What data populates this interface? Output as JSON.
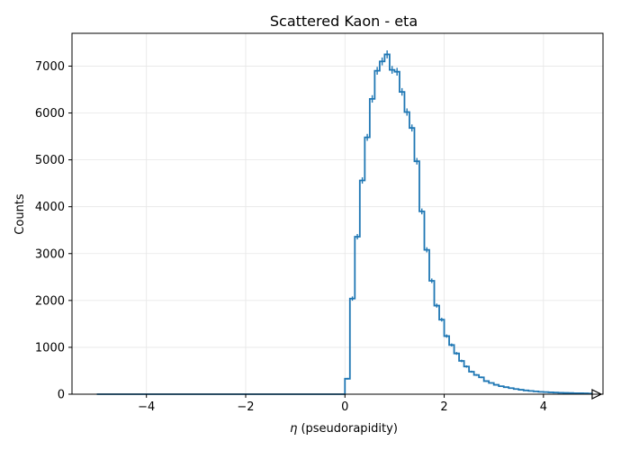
{
  "chart_data": {
    "type": "histogram",
    "title": "Scattered Kaon - eta",
    "xlabel_symbol": "η",
    "xlabel_text": " (pseudorapidity)",
    "ylabel": "Counts",
    "xlim": [
      -5.5,
      5.2
    ],
    "ylim": [
      0,
      7700
    ],
    "x_ticks": [
      -4,
      -2,
      0,
      2,
      4
    ],
    "x_tick_labels": [
      "−4",
      "−2",
      "0",
      "2",
      "4"
    ],
    "y_ticks": [
      0,
      1000,
      2000,
      3000,
      4000,
      5000,
      6000,
      7000
    ],
    "y_tick_labels": [
      "0",
      "1000",
      "2000",
      "3000",
      "4000",
      "5000",
      "6000",
      "7000"
    ],
    "grid": true,
    "bin_start": -5.0,
    "bin_width": 0.1,
    "series": [
      {
        "color": "#1f77b4",
        "values": [
          0,
          0,
          0,
          0,
          0,
          0,
          0,
          0,
          0,
          0,
          0,
          0,
          0,
          0,
          0,
          0,
          0,
          0,
          0,
          0,
          0,
          0,
          0,
          0,
          0,
          0,
          0,
          0,
          0,
          0,
          0,
          0,
          0,
          0,
          0,
          0,
          0,
          0,
          0,
          0,
          0,
          0,
          0,
          0,
          0,
          0,
          0,
          0,
          0,
          0,
          330,
          2040,
          3360,
          4560,
          5480,
          6300,
          6900,
          7100,
          7250,
          6920,
          6880,
          6450,
          6020,
          5680,
          4970,
          3900,
          3080,
          2420,
          1890,
          1590,
          1240,
          1050,
          870,
          710,
          590,
          480,
          410,
          360,
          280,
          240,
          200,
          170,
          150,
          130,
          110,
          95,
          80,
          70,
          60,
          50,
          45,
          40,
          35,
          30,
          28,
          25,
          22,
          20,
          18,
          15
        ]
      }
    ]
  }
}
